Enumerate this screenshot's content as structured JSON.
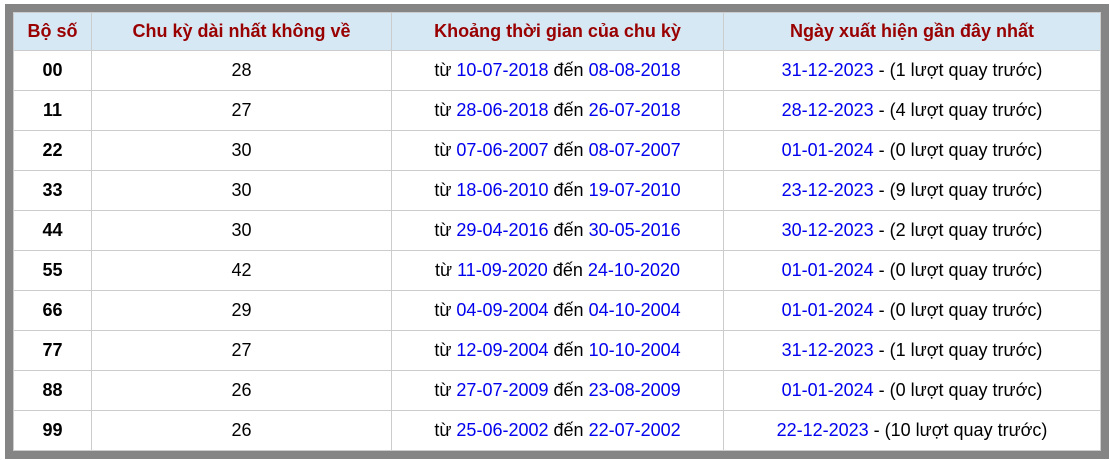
{
  "colors": {
    "outer_border": "#858585",
    "header_bg": "#d6e8f4",
    "header_text": "#990000",
    "link": "#0000ee",
    "grid_line": "#cccccc",
    "body_text": "#000000"
  },
  "table": {
    "headers": [
      "Bộ số",
      "Chu kỳ dài nhất không về",
      "Khoảng thời gian của chu kỳ",
      "Ngày xuất hiện gần đây nhất"
    ],
    "labels": {
      "from": "từ",
      "to": "đến"
    },
    "rows": [
      {
        "pair": "00",
        "cycle": "28",
        "from_date": "10-07-2018",
        "to_date": "08-08-2018",
        "last_seen": "31-12-2023",
        "ago": "- (1 lượt quay trước)"
      },
      {
        "pair": "11",
        "cycle": "27",
        "from_date": "28-06-2018",
        "to_date": "26-07-2018",
        "last_seen": "28-12-2023",
        "ago": "- (4 lượt quay trước)"
      },
      {
        "pair": "22",
        "cycle": "30",
        "from_date": "07-06-2007",
        "to_date": "08-07-2007",
        "last_seen": "01-01-2024",
        "ago": "- (0 lượt quay trước)"
      },
      {
        "pair": "33",
        "cycle": "30",
        "from_date": "18-06-2010",
        "to_date": "19-07-2010",
        "last_seen": "23-12-2023",
        "ago": "- (9 lượt quay trước)"
      },
      {
        "pair": "44",
        "cycle": "30",
        "from_date": "29-04-2016",
        "to_date": "30-05-2016",
        "last_seen": "30-12-2023",
        "ago": "- (2 lượt quay trước)"
      },
      {
        "pair": "55",
        "cycle": "42",
        "from_date": "11-09-2020",
        "to_date": "24-10-2020",
        "last_seen": "01-01-2024",
        "ago": "- (0 lượt quay trước)"
      },
      {
        "pair": "66",
        "cycle": "29",
        "from_date": "04-09-2004",
        "to_date": "04-10-2004",
        "last_seen": "01-01-2024",
        "ago": "- (0 lượt quay trước)"
      },
      {
        "pair": "77",
        "cycle": "27",
        "from_date": "12-09-2004",
        "to_date": "10-10-2004",
        "last_seen": "31-12-2023",
        "ago": "- (1 lượt quay trước)"
      },
      {
        "pair": "88",
        "cycle": "26",
        "from_date": "27-07-2009",
        "to_date": "23-08-2009",
        "last_seen": "01-01-2024",
        "ago": "- (0 lượt quay trước)"
      },
      {
        "pair": "99",
        "cycle": "26",
        "from_date": "25-06-2002",
        "to_date": "22-07-2002",
        "last_seen": "22-12-2023",
        "ago": "- (10 lượt quay trước)"
      }
    ]
  }
}
